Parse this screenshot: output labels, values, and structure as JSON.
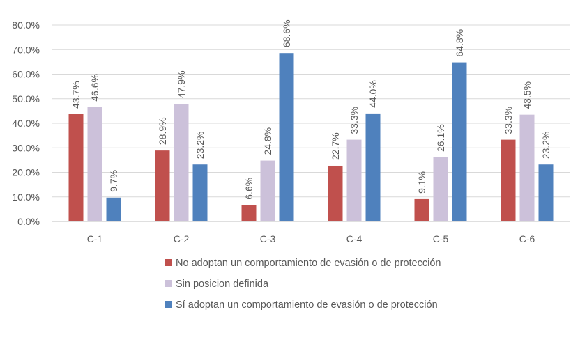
{
  "chart_data": {
    "type": "bar",
    "categories": [
      "C-1",
      "C-2",
      "C-3",
      "C-4",
      "C-5",
      "C-6"
    ],
    "series": [
      {
        "name": "No adoptan un comportamiento de evasión o de protección",
        "color": "#C0504D",
        "values": [
          43.7,
          28.9,
          6.6,
          22.7,
          9.1,
          33.3
        ],
        "labels": [
          "43.7%",
          "28.9%",
          "6.6%",
          "22.7%",
          "9.1%",
          "33.3%"
        ]
      },
      {
        "name": "Sin posicion definida",
        "color": "#CCC1DA",
        "values": [
          46.6,
          47.9,
          24.8,
          33.3,
          26.1,
          43.5
        ],
        "labels": [
          "46.6%",
          "47.9%",
          "24.8%",
          "33.3%",
          "26.1%",
          "43.5%"
        ]
      },
      {
        "name": "Sí adoptan un comportamiento de evasión o de protección",
        "color": "#4F81BD",
        "values": [
          9.7,
          23.2,
          68.6,
          44.0,
          64.8,
          23.2
        ],
        "labels": [
          "9.7%",
          "23.2%",
          "68.6%",
          "44.0%",
          "64.8%",
          "23.2%"
        ]
      }
    ],
    "ylim": [
      0,
      80
    ],
    "yticks": [
      "0.0%",
      "10.0%",
      "20.0%",
      "30.0%",
      "40.0%",
      "50.0%",
      "60.0%",
      "70.0%",
      "80.0%"
    ],
    "grid": true,
    "legend_position": "bottom",
    "title": "",
    "xlabel": "",
    "ylabel": ""
  }
}
